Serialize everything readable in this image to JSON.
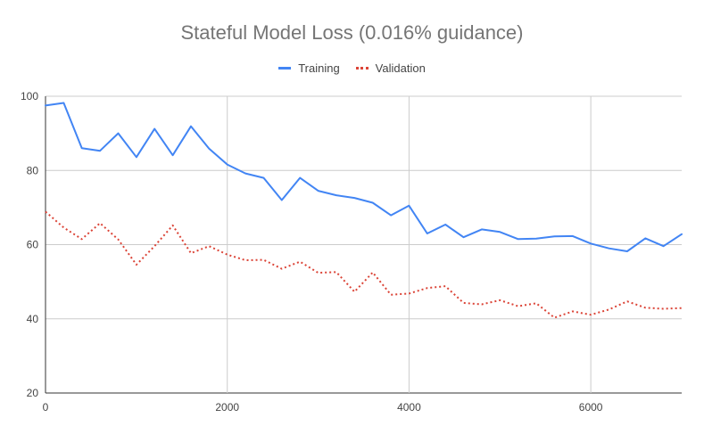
{
  "chart_data": {
    "type": "line",
    "title": "Stateful Model Loss (0.016% guidance)",
    "xlabel": "",
    "ylabel": "",
    "xlim": [
      0,
      7000
    ],
    "ylim": [
      20,
      100
    ],
    "x_ticks": [
      0,
      2000,
      4000,
      6000
    ],
    "y_ticks": [
      20,
      40,
      60,
      80,
      100
    ],
    "grid": true,
    "legend_position": "top",
    "series": [
      {
        "name": "Training",
        "color": "#4285F4",
        "style": "solid",
        "x": [
          0,
          200,
          400,
          600,
          800,
          1000,
          1200,
          1400,
          1600,
          1800,
          2000,
          2200,
          2400,
          2600,
          2800,
          3000,
          3200,
          3400,
          3600,
          3800,
          4000,
          4200,
          4400,
          4600,
          4800,
          5000,
          5200,
          5400,
          5600,
          5800,
          6000,
          6200,
          6400,
          6600,
          6800,
          7000
        ],
        "values": [
          97.5,
          98.2,
          86,
          85.3,
          90,
          83.6,
          91.2,
          84.1,
          91.9,
          85.9,
          81.6,
          79.2,
          78,
          72,
          78,
          74.5,
          73.3,
          72.6,
          71.3,
          67.9,
          70.5,
          63,
          65.4,
          62,
          64.1,
          63.4,
          61.5,
          61.6,
          62.2,
          62.3,
          60.3,
          59,
          58.2,
          61.7,
          59.6,
          62.8
        ]
      },
      {
        "name": "Validation",
        "color": "#DB4437",
        "style": "dotted",
        "x": [
          0,
          200,
          400,
          600,
          800,
          1000,
          1200,
          1400,
          1600,
          1800,
          2000,
          2200,
          2400,
          2600,
          2800,
          3000,
          3200,
          3400,
          3600,
          3800,
          4000,
          4200,
          4400,
          4600,
          4800,
          5000,
          5200,
          5400,
          5600,
          5800,
          6000,
          6200,
          6400,
          6600,
          6800,
          7000
        ],
        "values": [
          68.9,
          64.6,
          61.5,
          65.8,
          61.4,
          54.6,
          59.6,
          65.2,
          57.7,
          59.6,
          57.3,
          55.8,
          55.9,
          53.5,
          55.4,
          52.4,
          52.6,
          47.3,
          52.5,
          46.5,
          46.8,
          48.3,
          48.8,
          44.3,
          43.9,
          45,
          43.4,
          44.2,
          40.3,
          42,
          41.1,
          42.5,
          44.7,
          43,
          42.7,
          42.9
        ]
      }
    ]
  }
}
